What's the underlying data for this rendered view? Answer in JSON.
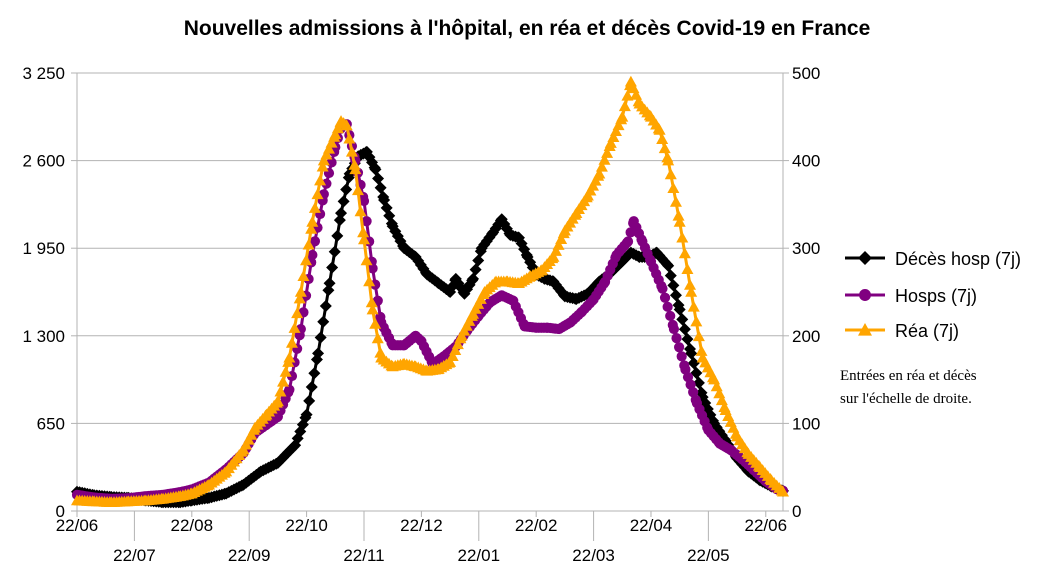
{
  "chart_data": {
    "type": "line",
    "title": "Nouvelles admissions à l'hôpital, en réa et décès Covid-19 en France",
    "left_axis": {
      "ylim": [
        0,
        3250
      ],
      "ticks": [
        {
          "value": 0,
          "label": "0"
        },
        {
          "value": 650,
          "label": "650"
        },
        {
          "value": 1300,
          "label": "1 300"
        },
        {
          "value": 1950,
          "label": "1 950"
        },
        {
          "value": 2600,
          "label": "2 600"
        },
        {
          "value": 3250,
          "label": "3 250"
        }
      ]
    },
    "right_axis": {
      "ylim": [
        0,
        500
      ],
      "ticks": [
        {
          "value": 0,
          "label": "0"
        },
        {
          "value": 100,
          "label": "100"
        },
        {
          "value": 200,
          "label": "200"
        },
        {
          "value": 300,
          "label": "300"
        },
        {
          "value": 400,
          "label": "400"
        },
        {
          "value": 500,
          "label": "500"
        }
      ]
    },
    "x_axis": {
      "unit": "month index (0 = 22/06/2020)",
      "xlim": [
        0,
        12.3
      ],
      "ticks": [
        {
          "value": 0,
          "label": "22/06",
          "row": 1
        },
        {
          "value": 1,
          "label": "22/07",
          "row": 2
        },
        {
          "value": 2,
          "label": "22/08",
          "row": 1
        },
        {
          "value": 3,
          "label": "22/09",
          "row": 2
        },
        {
          "value": 4,
          "label": "22/10",
          "row": 1
        },
        {
          "value": 5,
          "label": "22/11",
          "row": 2
        },
        {
          "value": 6,
          "label": "22/12",
          "row": 1
        },
        {
          "value": 7,
          "label": "22/01",
          "row": 2
        },
        {
          "value": 8,
          "label": "22/02",
          "row": 1
        },
        {
          "value": 9,
          "label": "22/03",
          "row": 2
        },
        {
          "value": 10,
          "label": "22/04",
          "row": 1
        },
        {
          "value": 11,
          "label": "22/05",
          "row": 2
        },
        {
          "value": 12,
          "label": "22/06",
          "row": 1
        }
      ]
    },
    "grid": "horizontal",
    "legend_position": "right",
    "series": [
      {
        "name": "Décès hosp (7j)",
        "axis": "right",
        "color": "#000000",
        "marker": "diamond",
        "points": [
          [
            0,
            22
          ],
          [
            0.3,
            18
          ],
          [
            0.6,
            16
          ],
          [
            0.9,
            15
          ],
          [
            1.2,
            12
          ],
          [
            1.5,
            10
          ],
          [
            1.8,
            10
          ],
          [
            2.0,
            12
          ],
          [
            2.3,
            15
          ],
          [
            2.6,
            20
          ],
          [
            2.9,
            30
          ],
          [
            3.2,
            45
          ],
          [
            3.5,
            55
          ],
          [
            3.8,
            75
          ],
          [
            4.0,
            110
          ],
          [
            4.2,
            180
          ],
          [
            4.4,
            260
          ],
          [
            4.6,
            340
          ],
          [
            4.75,
            385
          ],
          [
            4.9,
            405
          ],
          [
            5.05,
            410
          ],
          [
            5.2,
            390
          ],
          [
            5.35,
            355
          ],
          [
            5.5,
            325
          ],
          [
            5.7,
            300
          ],
          [
            5.9,
            290
          ],
          [
            6.1,
            270
          ],
          [
            6.3,
            260
          ],
          [
            6.5,
            250
          ],
          [
            6.6,
            265
          ],
          [
            6.75,
            248
          ],
          [
            6.9,
            265
          ],
          [
            7.05,
            300
          ],
          [
            7.25,
            318
          ],
          [
            7.4,
            333
          ],
          [
            7.55,
            315
          ],
          [
            7.7,
            312
          ],
          [
            7.85,
            290
          ],
          [
            8.0,
            270
          ],
          [
            8.15,
            265
          ],
          [
            8.3,
            262
          ],
          [
            8.5,
            245
          ],
          [
            8.7,
            242
          ],
          [
            8.9,
            248
          ],
          [
            9.1,
            262
          ],
          [
            9.3,
            272
          ],
          [
            9.5,
            285
          ],
          [
            9.65,
            295
          ],
          [
            9.8,
            290
          ],
          [
            9.95,
            290
          ],
          [
            10.1,
            295
          ],
          [
            10.3,
            280
          ],
          [
            10.5,
            230
          ],
          [
            10.7,
            180
          ],
          [
            10.9,
            130
          ],
          [
            11.1,
            100
          ],
          [
            11.3,
            80
          ],
          [
            11.5,
            60
          ],
          [
            11.7,
            45
          ],
          [
            11.9,
            35
          ],
          [
            12.1,
            28
          ],
          [
            12.3,
            23
          ]
        ]
      },
      {
        "name": "Hosps (7j)",
        "axis": "left",
        "color": "#800080",
        "marker": "circle",
        "points": [
          [
            0,
            120
          ],
          [
            0.3,
            100
          ],
          [
            0.6,
            90
          ],
          [
            0.9,
            95
          ],
          [
            1.2,
            110
          ],
          [
            1.5,
            120
          ],
          [
            1.8,
            140
          ],
          [
            2.0,
            160
          ],
          [
            2.3,
            210
          ],
          [
            2.6,
            310
          ],
          [
            2.9,
            430
          ],
          [
            3.1,
            580
          ],
          [
            3.3,
            640
          ],
          [
            3.5,
            700
          ],
          [
            3.7,
            900
          ],
          [
            3.9,
            1350
          ],
          [
            4.1,
            1900
          ],
          [
            4.3,
            2350
          ],
          [
            4.5,
            2700
          ],
          [
            4.6,
            2850
          ],
          [
            4.7,
            2870
          ],
          [
            4.85,
            2600
          ],
          [
            5.0,
            2300
          ],
          [
            5.15,
            1800
          ],
          [
            5.3,
            1400
          ],
          [
            5.5,
            1230
          ],
          [
            5.7,
            1230
          ],
          [
            5.9,
            1300
          ],
          [
            6.0,
            1260
          ],
          [
            6.2,
            1090
          ],
          [
            6.4,
            1150
          ],
          [
            6.6,
            1220
          ],
          [
            6.8,
            1340
          ],
          [
            7.0,
            1450
          ],
          [
            7.2,
            1550
          ],
          [
            7.4,
            1600
          ],
          [
            7.6,
            1560
          ],
          [
            7.8,
            1370
          ],
          [
            8.0,
            1360
          ],
          [
            8.2,
            1360
          ],
          [
            8.4,
            1350
          ],
          [
            8.6,
            1400
          ],
          [
            8.8,
            1480
          ],
          [
            9.0,
            1570
          ],
          [
            9.2,
            1700
          ],
          [
            9.4,
            1900
          ],
          [
            9.6,
            2000
          ],
          [
            9.7,
            2150
          ],
          [
            9.85,
            2000
          ],
          [
            10.0,
            1850
          ],
          [
            10.2,
            1650
          ],
          [
            10.4,
            1350
          ],
          [
            10.6,
            1050
          ],
          [
            10.8,
            800
          ],
          [
            11.0,
            600
          ],
          [
            11.2,
            500
          ],
          [
            11.4,
            450
          ],
          [
            11.6,
            380
          ],
          [
            11.8,
            300
          ],
          [
            12.0,
            220
          ],
          [
            12.2,
            160
          ],
          [
            12.3,
            150
          ]
        ]
      },
      {
        "name": "Réa (7j)",
        "axis": "right",
        "color": "#FFA500",
        "marker": "triangle",
        "points": [
          [
            0,
            12
          ],
          [
            0.3,
            11
          ],
          [
            0.6,
            10
          ],
          [
            0.9,
            11
          ],
          [
            1.2,
            12
          ],
          [
            1.5,
            14
          ],
          [
            1.8,
            17
          ],
          [
            2.0,
            20
          ],
          [
            2.3,
            30
          ],
          [
            2.6,
            45
          ],
          [
            2.9,
            70
          ],
          [
            3.1,
            95
          ],
          [
            3.3,
            110
          ],
          [
            3.5,
            125
          ],
          [
            3.7,
            175
          ],
          [
            3.9,
            250
          ],
          [
            4.1,
            330
          ],
          [
            4.3,
            400
          ],
          [
            4.5,
            430
          ],
          [
            4.6,
            445
          ],
          [
            4.7,
            440
          ],
          [
            4.85,
            390
          ],
          [
            5.0,
            310
          ],
          [
            5.15,
            230
          ],
          [
            5.3,
            175
          ],
          [
            5.5,
            165
          ],
          [
            5.7,
            168
          ],
          [
            5.9,
            165
          ],
          [
            6.1,
            160
          ],
          [
            6.3,
            162
          ],
          [
            6.5,
            170
          ],
          [
            6.7,
            200
          ],
          [
            6.9,
            225
          ],
          [
            7.1,
            250
          ],
          [
            7.3,
            262
          ],
          [
            7.5,
            262
          ],
          [
            7.7,
            260
          ],
          [
            7.9,
            268
          ],
          [
            8.1,
            275
          ],
          [
            8.3,
            290
          ],
          [
            8.5,
            320
          ],
          [
            8.7,
            340
          ],
          [
            8.9,
            360
          ],
          [
            9.1,
            385
          ],
          [
            9.3,
            420
          ],
          [
            9.5,
            450
          ],
          [
            9.65,
            490
          ],
          [
            9.8,
            465
          ],
          [
            10.0,
            450
          ],
          [
            10.15,
            435
          ],
          [
            10.3,
            400
          ],
          [
            10.5,
            330
          ],
          [
            10.7,
            250
          ],
          [
            10.9,
            175
          ],
          [
            11.1,
            150
          ],
          [
            11.3,
            115
          ],
          [
            11.5,
            85
          ],
          [
            11.7,
            65
          ],
          [
            11.9,
            50
          ],
          [
            12.1,
            35
          ],
          [
            12.3,
            22
          ]
        ]
      }
    ],
    "annotation": [
      "Entrées en réa et décès",
      "sur l'échelle de droite."
    ]
  }
}
